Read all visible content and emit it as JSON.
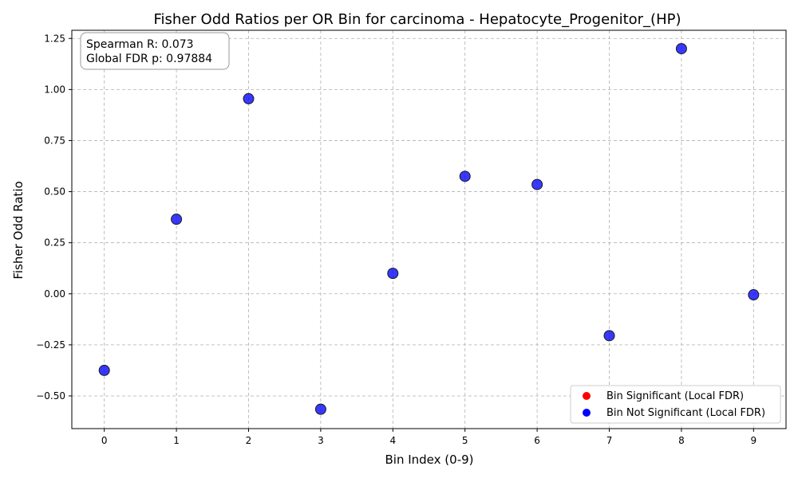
{
  "chart_data": {
    "type": "scatter",
    "title": "Fisher Odd Ratios per OR Bin for carcinoma - Hepatocyte_Progenitor_(HP)",
    "xlabel": "Bin Index (0-9)",
    "ylabel": "Fisher Odd Ratio",
    "xlim": [
      -0.45,
      9.45
    ],
    "ylim": [
      -0.66,
      1.29
    ],
    "x_ticks": [
      0,
      1,
      2,
      3,
      4,
      5,
      6,
      7,
      8,
      9
    ],
    "x_tick_labels": [
      "0",
      "1",
      "2",
      "3",
      "4",
      "5",
      "6",
      "7",
      "8",
      "9"
    ],
    "y_ticks": [
      -0.5,
      -0.25,
      0.0,
      0.25,
      0.5,
      0.75,
      1.0,
      1.25
    ],
    "y_tick_labels": [
      "−0.50",
      "−0.25",
      "0.00",
      "0.25",
      "0.50",
      "0.75",
      "1.00",
      "1.25"
    ],
    "grid": true,
    "series": [
      {
        "name": "Bin Not Significant (Local FDR)",
        "color": "#0000ff",
        "x": [
          0,
          1,
          2,
          3,
          4,
          5,
          6,
          7,
          8,
          9
        ],
        "y": [
          -0.375,
          0.365,
          0.955,
          -0.565,
          0.1,
          0.575,
          0.535,
          -0.205,
          1.2,
          -0.005
        ]
      }
    ],
    "legend": {
      "placement": "lower-right",
      "entries": [
        {
          "label": "Bin Significant (Local FDR)",
          "color": "#ff0000"
        },
        {
          "label": "Bin Not Significant (Local FDR)",
          "color": "#0000ff"
        }
      ]
    },
    "annotations": {
      "placement": "top-left",
      "lines": [
        "Spearman R: 0.073",
        "Global FDR p: 0.97884"
      ]
    }
  }
}
